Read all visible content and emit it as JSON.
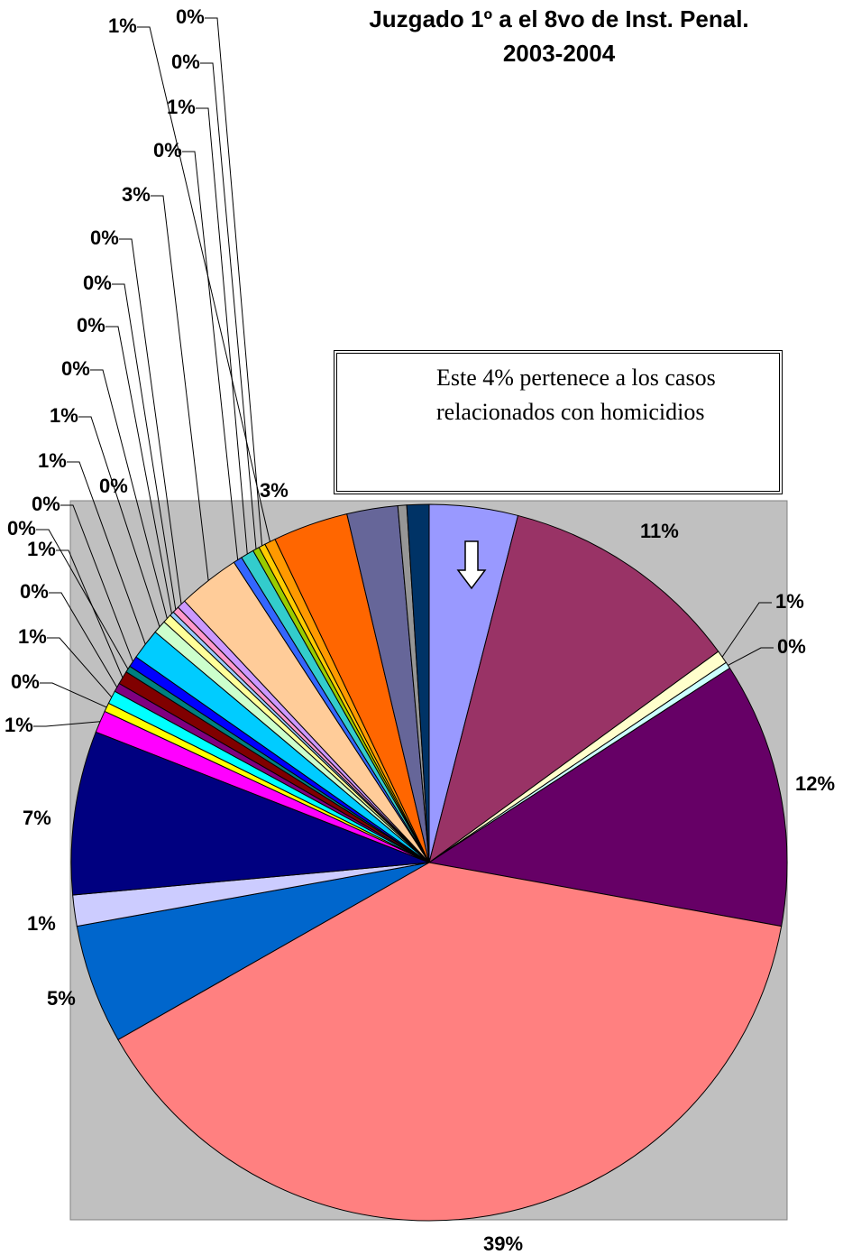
{
  "chart_data": {
    "type": "pie",
    "title": "Juzgado 1º a el 8vo de Inst. Penal. 2003-2004",
    "annotation": "Este 4% pertenece a los casos relacionados con homicidios",
    "values": [
      4,
      11,
      0.6,
      0.3,
      12,
      39,
      5.4,
      1.4,
      7.4,
      1,
      0.4,
      0.6,
      0.4,
      0.6,
      0.3,
      0.5,
      1.4,
      0.6,
      0.4,
      0.2,
      0.3,
      0.4,
      2.8,
      0.4,
      0.6,
      0.3,
      0.3,
      0.5,
      3.4,
      2.3,
      0.4,
      1.0
    ],
    "value_labels": [
      null,
      "11%",
      "1%",
      "0%",
      "12%",
      "39%",
      "5%",
      "1%",
      "7%",
      "1%",
      "0%",
      "1%",
      "0%",
      "1%",
      "0%",
      "0%",
      "1%",
      "1%",
      "0%",
      "0%",
      "0%",
      "0%",
      "3%",
      "0%",
      "1%",
      "0%",
      "0%",
      "1%",
      "3%",
      null,
      "0%",
      null
    ],
    "colors": [
      "#9999ff",
      "#993366",
      "#ffffcc",
      "#ccffff",
      "#660066",
      "#ff8080",
      "#0066cc",
      "#ccccff",
      "#000080",
      "#ff00ff",
      "#ffff00",
      "#00ffff",
      "#800080",
      "#800000",
      "#008080",
      "#0000ff",
      "#00ccff",
      "#ccffcc",
      "#ffff99",
      "#99ccff",
      "#ff99cc",
      "#cc99ff",
      "#ffcc99",
      "#3366ff",
      "#33cccc",
      "#99cc00",
      "#ffcc00",
      "#ff9900",
      "#ff6600",
      "#666699",
      "#969696",
      "#003366"
    ]
  }
}
